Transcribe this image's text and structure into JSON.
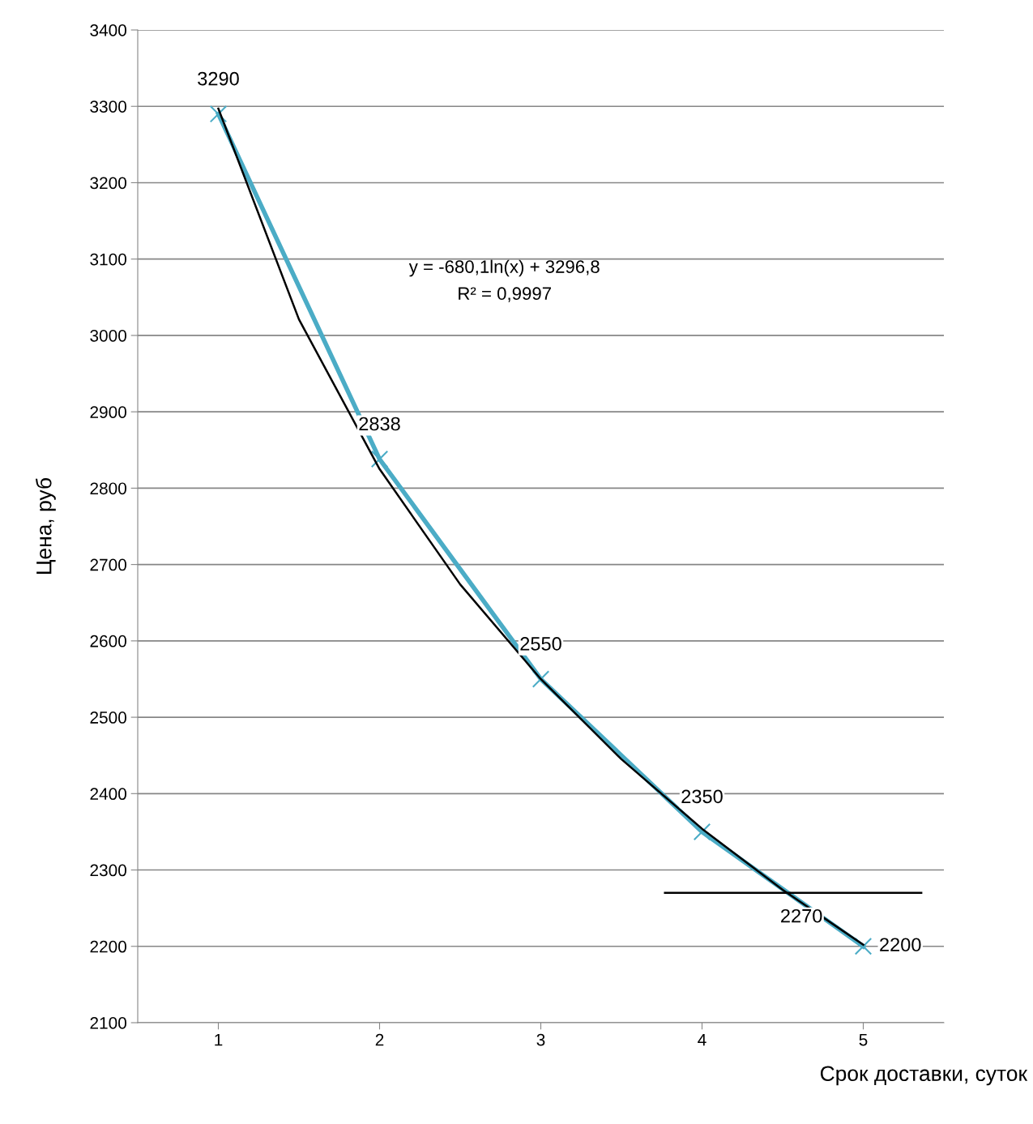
{
  "chart_data": {
    "type": "line",
    "ylabel": "Цена, руб",
    "xlabel": "Срок доставки, суток",
    "x": [
      1,
      2,
      3,
      4,
      5
    ],
    "series": [
      {
        "color": "#4bacc6",
        "values": [
          3290,
          2838,
          2550,
          2350,
          2200
        ],
        "marker": "cross",
        "data_labels": true
      },
      {
        "color": "#000000",
        "x": [
          1,
          1.5,
          2,
          2.5,
          3,
          3.5,
          4,
          4.5,
          5
        ],
        "values": [
          3297,
          3021,
          2825,
          2674,
          2550,
          2445,
          2354,
          2274,
          2202
        ],
        "marker": "none"
      },
      {
        "color": "#000000",
        "x": [
          3.77,
          5.36
        ],
        "values": [
          2270,
          2270
        ],
        "marker": "none"
      }
    ],
    "annotations": [
      "y = -680,1ln(x) + 3296,8",
      "R² = 0,9997",
      {
        "text": "2270",
        "x": 4.7,
        "y": 2270
      }
    ],
    "xlim": [
      0.5,
      5.5
    ],
    "xticks": [
      1,
      2,
      3,
      4,
      5
    ],
    "ylim": [
      2100,
      3400
    ],
    "yticks": [
      2100,
      2200,
      2300,
      2400,
      2500,
      2600,
      2700,
      2800,
      2900,
      3000,
      3100,
      3200,
      3300,
      3400
    ],
    "grid": "y",
    "legend": false
  }
}
